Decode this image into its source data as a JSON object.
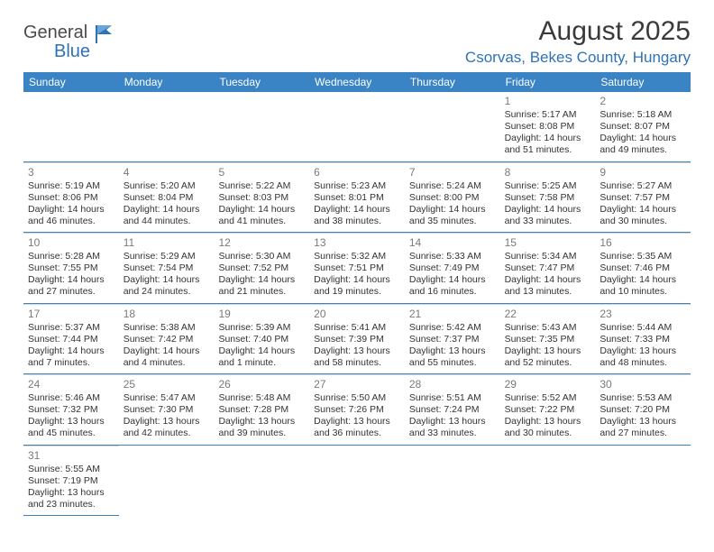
{
  "logo": {
    "part1": "General",
    "part2": "Blue"
  },
  "title": "August 2025",
  "location": "Csorvas, Bekes County, Hungary",
  "colors": {
    "header_bg": "#3a83c4",
    "header_text": "#ffffff",
    "accent": "#2e72b8",
    "body_text": "#333333",
    "daynum": "#7a7a7a",
    "divider": "#d6d6d6",
    "background": "#ffffff"
  },
  "day_headers": [
    "Sunday",
    "Monday",
    "Tuesday",
    "Wednesday",
    "Thursday",
    "Friday",
    "Saturday"
  ],
  "weeks": [
    [
      null,
      null,
      null,
      null,
      null,
      {
        "n": "1",
        "sunrise": "5:17 AM",
        "sunset": "8:08 PM",
        "daylight": "14 hours and 51 minutes."
      },
      {
        "n": "2",
        "sunrise": "5:18 AM",
        "sunset": "8:07 PM",
        "daylight": "14 hours and 49 minutes."
      }
    ],
    [
      {
        "n": "3",
        "sunrise": "5:19 AM",
        "sunset": "8:06 PM",
        "daylight": "14 hours and 46 minutes."
      },
      {
        "n": "4",
        "sunrise": "5:20 AM",
        "sunset": "8:04 PM",
        "daylight": "14 hours and 44 minutes."
      },
      {
        "n": "5",
        "sunrise": "5:22 AM",
        "sunset": "8:03 PM",
        "daylight": "14 hours and 41 minutes."
      },
      {
        "n": "6",
        "sunrise": "5:23 AM",
        "sunset": "8:01 PM",
        "daylight": "14 hours and 38 minutes."
      },
      {
        "n": "7",
        "sunrise": "5:24 AM",
        "sunset": "8:00 PM",
        "daylight": "14 hours and 35 minutes."
      },
      {
        "n": "8",
        "sunrise": "5:25 AM",
        "sunset": "7:58 PM",
        "daylight": "14 hours and 33 minutes."
      },
      {
        "n": "9",
        "sunrise": "5:27 AM",
        "sunset": "7:57 PM",
        "daylight": "14 hours and 30 minutes."
      }
    ],
    [
      {
        "n": "10",
        "sunrise": "5:28 AM",
        "sunset": "7:55 PM",
        "daylight": "14 hours and 27 minutes."
      },
      {
        "n": "11",
        "sunrise": "5:29 AM",
        "sunset": "7:54 PM",
        "daylight": "14 hours and 24 minutes."
      },
      {
        "n": "12",
        "sunrise": "5:30 AM",
        "sunset": "7:52 PM",
        "daylight": "14 hours and 21 minutes."
      },
      {
        "n": "13",
        "sunrise": "5:32 AM",
        "sunset": "7:51 PM",
        "daylight": "14 hours and 19 minutes."
      },
      {
        "n": "14",
        "sunrise": "5:33 AM",
        "sunset": "7:49 PM",
        "daylight": "14 hours and 16 minutes."
      },
      {
        "n": "15",
        "sunrise": "5:34 AM",
        "sunset": "7:47 PM",
        "daylight": "14 hours and 13 minutes."
      },
      {
        "n": "16",
        "sunrise": "5:35 AM",
        "sunset": "7:46 PM",
        "daylight": "14 hours and 10 minutes."
      }
    ],
    [
      {
        "n": "17",
        "sunrise": "5:37 AM",
        "sunset": "7:44 PM",
        "daylight": "14 hours and 7 minutes."
      },
      {
        "n": "18",
        "sunrise": "5:38 AM",
        "sunset": "7:42 PM",
        "daylight": "14 hours and 4 minutes."
      },
      {
        "n": "19",
        "sunrise": "5:39 AM",
        "sunset": "7:40 PM",
        "daylight": "14 hours and 1 minute."
      },
      {
        "n": "20",
        "sunrise": "5:41 AM",
        "sunset": "7:39 PM",
        "daylight": "13 hours and 58 minutes."
      },
      {
        "n": "21",
        "sunrise": "5:42 AM",
        "sunset": "7:37 PM",
        "daylight": "13 hours and 55 minutes."
      },
      {
        "n": "22",
        "sunrise": "5:43 AM",
        "sunset": "7:35 PM",
        "daylight": "13 hours and 52 minutes."
      },
      {
        "n": "23",
        "sunrise": "5:44 AM",
        "sunset": "7:33 PM",
        "daylight": "13 hours and 48 minutes."
      }
    ],
    [
      {
        "n": "24",
        "sunrise": "5:46 AM",
        "sunset": "7:32 PM",
        "daylight": "13 hours and 45 minutes."
      },
      {
        "n": "25",
        "sunrise": "5:47 AM",
        "sunset": "7:30 PM",
        "daylight": "13 hours and 42 minutes."
      },
      {
        "n": "26",
        "sunrise": "5:48 AM",
        "sunset": "7:28 PM",
        "daylight": "13 hours and 39 minutes."
      },
      {
        "n": "27",
        "sunrise": "5:50 AM",
        "sunset": "7:26 PM",
        "daylight": "13 hours and 36 minutes."
      },
      {
        "n": "28",
        "sunrise": "5:51 AM",
        "sunset": "7:24 PM",
        "daylight": "13 hours and 33 minutes."
      },
      {
        "n": "29",
        "sunrise": "5:52 AM",
        "sunset": "7:22 PM",
        "daylight": "13 hours and 30 minutes."
      },
      {
        "n": "30",
        "sunrise": "5:53 AM",
        "sunset": "7:20 PM",
        "daylight": "13 hours and 27 minutes."
      }
    ],
    [
      {
        "n": "31",
        "sunrise": "5:55 AM",
        "sunset": "7:19 PM",
        "daylight": "13 hours and 23 minutes."
      },
      null,
      null,
      null,
      null,
      null,
      null
    ]
  ],
  "labels": {
    "sunrise": "Sunrise: ",
    "sunset": "Sunset: ",
    "daylight": "Daylight: "
  }
}
